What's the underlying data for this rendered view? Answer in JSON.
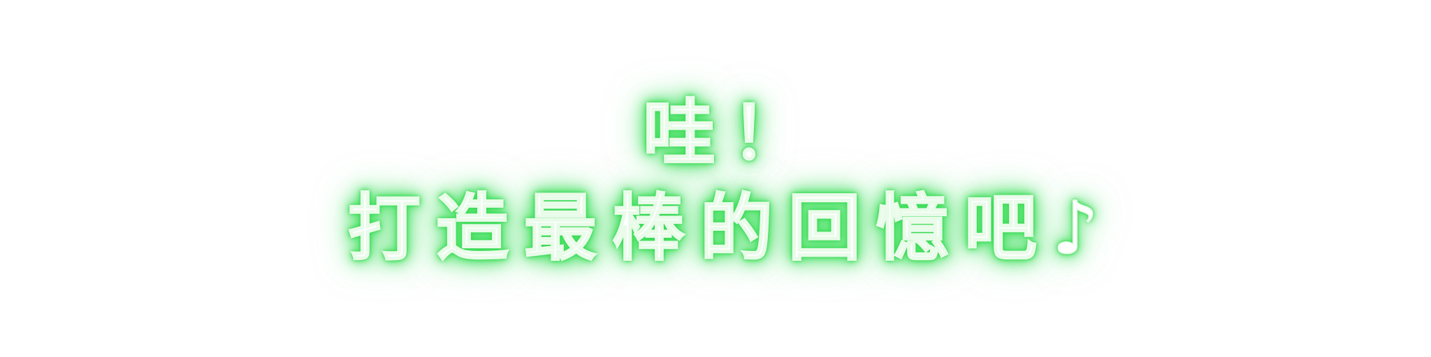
{
  "banner": {
    "line1": "哇！",
    "line2": "打造最棒的回憶吧♪",
    "text_color": "#ffffff",
    "glow_color": "#48e063",
    "background_color": "#ffffff"
  }
}
